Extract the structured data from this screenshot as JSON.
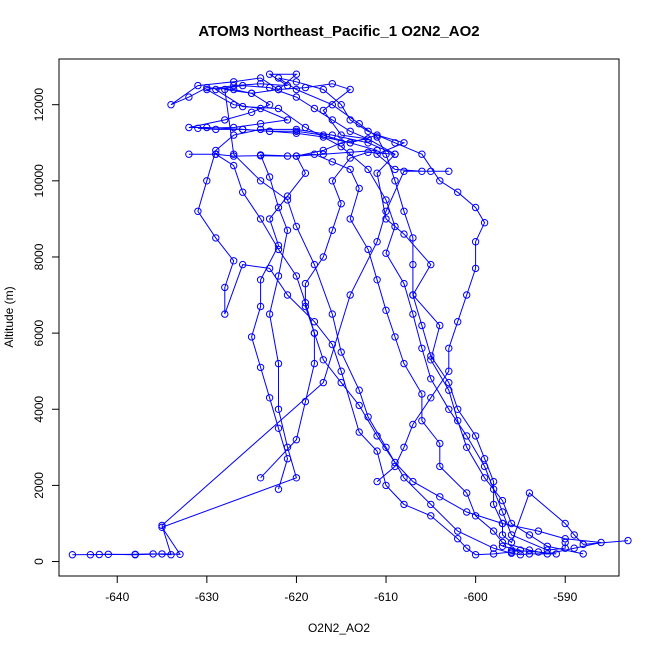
{
  "chart_data": {
    "type": "scatter",
    "title": "ATOM3 Northeast_Pacific_1 O2N2_AO2",
    "xlabel": "O2N2_AO2",
    "ylabel": "Altitude (m)",
    "xlim": [
      -646.5,
      -584.0
    ],
    "ylim": [
      -380,
      13200
    ],
    "xticks": [
      -640,
      -630,
      -620,
      -610,
      -600,
      -590
    ],
    "yticks": [
      0,
      2000,
      4000,
      6000,
      8000,
      10000,
      12000
    ],
    "grid": false,
    "legend": "none",
    "color": "#0000ff",
    "series": [
      {
        "points": [
          [
            -645,
            180
          ],
          [
            -642,
            185
          ],
          [
            -638,
            190
          ],
          [
            -636,
            200
          ],
          [
            -634,
            180
          ],
          [
            -635,
            950
          ],
          [
            -617,
            4700
          ],
          [
            -614,
            7000
          ],
          [
            -611,
            8400
          ],
          [
            -610,
            9200
          ],
          [
            -608,
            10250
          ],
          [
            -605,
            10250
          ],
          [
            -603,
            10250
          ],
          [
            -606,
            10250
          ],
          [
            -609,
            10300
          ],
          [
            -611,
            10700
          ],
          [
            -608,
            11000
          ],
          [
            -611,
            11200
          ],
          [
            -614,
            11000
          ],
          [
            -617,
            11200
          ],
          [
            -620,
            11300
          ],
          [
            -623,
            11300
          ],
          [
            -626,
            11350
          ],
          [
            -629,
            11350
          ],
          [
            -631,
            11380
          ],
          [
            -627,
            11400
          ],
          [
            -624,
            11500
          ],
          [
            -621,
            11600
          ],
          [
            -624,
            11900
          ],
          [
            -627,
            12000
          ],
          [
            -630,
            12400
          ],
          [
            -627,
            12500
          ],
          [
            -624,
            12550
          ],
          [
            -621,
            12500
          ],
          [
            -623,
            12800
          ],
          [
            -620,
            12800
          ],
          [
            -622,
            12400
          ],
          [
            -625,
            12300
          ],
          [
            -628,
            12400
          ],
          [
            -627,
            10700
          ],
          [
            -624,
            10000
          ],
          [
            -621,
            9500
          ],
          [
            -620,
            8800
          ],
          [
            -618,
            7800
          ],
          [
            -616,
            6500
          ],
          [
            -615,
            5500
          ],
          [
            -613,
            4500
          ],
          [
            -612,
            3800
          ],
          [
            -610,
            3000
          ],
          [
            -608,
            2200
          ],
          [
            -605,
            1500
          ],
          [
            -602,
            800
          ],
          [
            -598,
            350
          ],
          [
            -596,
            220
          ],
          [
            -595,
            180
          ],
          [
            -594,
            200
          ],
          [
            -591,
            200
          ],
          [
            -593,
            250
          ],
          [
            -596,
            300
          ]
        ]
      },
      {
        "points": [
          [
            -643,
            180
          ],
          [
            -641,
            190
          ],
          [
            -638,
            180
          ],
          [
            -635,
            200
          ],
          [
            -633,
            190
          ],
          [
            -635,
            900
          ],
          [
            -620,
            2200
          ],
          [
            -621,
            3000
          ],
          [
            -622,
            4000
          ],
          [
            -622,
            5200
          ],
          [
            -623,
            6500
          ],
          [
            -622,
            7500
          ],
          [
            -621,
            8700
          ],
          [
            -622,
            9300
          ],
          [
            -623,
            10100
          ],
          [
            -624,
            10680
          ],
          [
            -620,
            10650
          ],
          [
            -617,
            10700
          ],
          [
            -614,
            10750
          ],
          [
            -611,
            10800
          ],
          [
            -614,
            11000
          ],
          [
            -617,
            11150
          ],
          [
            -620,
            11250
          ],
          [
            -623,
            11300
          ],
          [
            -626,
            11350
          ],
          [
            -630,
            11400
          ],
          [
            -632,
            11400
          ],
          [
            -628,
            11600
          ],
          [
            -625,
            11800
          ],
          [
            -623,
            12000
          ],
          [
            -625,
            12300
          ],
          [
            -627,
            12400
          ],
          [
            -630,
            12450
          ],
          [
            -632,
            12200
          ],
          [
            -634,
            12000
          ],
          [
            -631,
            12500
          ],
          [
            -627,
            12600
          ],
          [
            -624,
            12700
          ],
          [
            -622,
            12400
          ],
          [
            -619,
            12450
          ],
          [
            -616,
            12550
          ],
          [
            -614,
            12400
          ],
          [
            -617,
            11850
          ],
          [
            -615,
            11200
          ],
          [
            -612,
            11100
          ],
          [
            -609,
            10700
          ],
          [
            -611,
            10200
          ],
          [
            -610,
            9000
          ],
          [
            -608,
            8600
          ],
          [
            -605,
            7800
          ],
          [
            -607,
            7000
          ],
          [
            -604,
            6200
          ],
          [
            -605,
            5300
          ],
          [
            -603,
            4500
          ],
          [
            -602,
            3700
          ],
          [
            -601,
            3000
          ],
          [
            -599,
            2200
          ],
          [
            -597,
            1600
          ],
          [
            -596,
            1000
          ],
          [
            -594,
            700
          ],
          [
            -592,
            400
          ],
          [
            -588,
            200
          ]
        ]
      },
      {
        "points": [
          [
            -632,
            10700
          ],
          [
            -629,
            10700
          ],
          [
            -627,
            10650
          ],
          [
            -624,
            10660
          ],
          [
            -621,
            10650
          ],
          [
            -618,
            10700
          ],
          [
            -616,
            10500
          ],
          [
            -614,
            10300
          ],
          [
            -613,
            9800
          ],
          [
            -614,
            9000
          ],
          [
            -612,
            8200
          ],
          [
            -611,
            7400
          ],
          [
            -610,
            6600
          ],
          [
            -609,
            5900
          ],
          [
            -608,
            5200
          ],
          [
            -606,
            4400
          ],
          [
            -606,
            3700
          ],
          [
            -604,
            3100
          ],
          [
            -604,
            2500
          ],
          [
            -601,
            1800
          ],
          [
            -600,
            1200
          ],
          [
            -598,
            800
          ],
          [
            -597,
            500
          ],
          [
            -594,
            300
          ],
          [
            -592,
            200
          ],
          [
            -589,
            350
          ],
          [
            -586,
            500
          ],
          [
            -590,
            600
          ],
          [
            -593,
            800
          ],
          [
            -597,
            1000
          ],
          [
            -601,
            1300
          ],
          [
            -604,
            1700
          ],
          [
            -607,
            2100
          ],
          [
            -609,
            2600
          ],
          [
            -611,
            3300
          ],
          [
            -613,
            4100
          ],
          [
            -615,
            4700
          ],
          [
            -617,
            5300
          ],
          [
            -618,
            6000
          ],
          [
            -619,
            6800
          ],
          [
            -620,
            7500
          ],
          [
            -622,
            8200
          ],
          [
            -624,
            9000
          ],
          [
            -626,
            9700
          ],
          [
            -627,
            10400
          ],
          [
            -629,
            10700
          ]
        ]
      },
      {
        "points": [
          [
            -622,
            1900
          ],
          [
            -621,
            2700
          ],
          [
            -622,
            3500
          ],
          [
            -623,
            4300
          ],
          [
            -624,
            5100
          ],
          [
            -625,
            5900
          ],
          [
            -624,
            6700
          ],
          [
            -624,
            7400
          ],
          [
            -622,
            8300
          ],
          [
            -623,
            9000
          ],
          [
            -621,
            9600
          ],
          [
            -619,
            10200
          ],
          [
            -620,
            10650
          ],
          [
            -617,
            10800
          ],
          [
            -615,
            11000
          ],
          [
            -612,
            11100
          ],
          [
            -614,
            11300
          ],
          [
            -616,
            11600
          ],
          [
            -618,
            11900
          ],
          [
            -620,
            12200
          ],
          [
            -623,
            12450
          ],
          [
            -626,
            12500
          ],
          [
            -629,
            12400
          ],
          [
            -626,
            11950
          ],
          [
            -622,
            11900
          ],
          [
            -619,
            11400
          ],
          [
            -615,
            10900
          ],
          [
            -612,
            10300
          ],
          [
            -610,
            9500
          ],
          [
            -609,
            8800
          ],
          [
            -610,
            8100
          ],
          [
            -608,
            7300
          ],
          [
            -607,
            6500
          ],
          [
            -606,
            5600
          ],
          [
            -605,
            4800
          ],
          [
            -603,
            4000
          ],
          [
            -601,
            3300
          ],
          [
            -599,
            2500
          ],
          [
            -598,
            1900
          ],
          [
            -597,
            1300
          ],
          [
            -596,
            700
          ],
          [
            -592,
            300
          ],
          [
            -590,
            350
          ],
          [
            -590,
            500
          ]
        ]
      },
      {
        "points": [
          [
            -624,
            2200
          ],
          [
            -620,
            3200
          ],
          [
            -619,
            4200
          ],
          [
            -618,
            5200
          ],
          [
            -618,
            6000
          ],
          [
            -619,
            6700
          ],
          [
            -619,
            7300
          ],
          [
            -617,
            8000
          ],
          [
            -616,
            8700
          ],
          [
            -615,
            9400
          ],
          [
            -616,
            10000
          ],
          [
            -614,
            10600
          ],
          [
            -612,
            10750
          ],
          [
            -609,
            10700
          ],
          [
            -612,
            11000
          ],
          [
            -616,
            11200
          ],
          [
            -620,
            11350
          ],
          [
            -624,
            11350
          ],
          [
            -627,
            11200
          ],
          [
            -629,
            10800
          ],
          [
            -630,
            10000
          ],
          [
            -631,
            9200
          ],
          [
            -629,
            8500
          ],
          [
            -627,
            7900
          ],
          [
            -628,
            7200
          ],
          [
            -628,
            6500
          ],
          [
            -626,
            7800
          ],
          [
            -623,
            7700
          ],
          [
            -621,
            7000
          ],
          [
            -618,
            6300
          ],
          [
            -616,
            5700
          ],
          [
            -615,
            5000
          ],
          [
            -613,
            3400
          ],
          [
            -611,
            2900
          ],
          [
            -610,
            2000
          ],
          [
            -608,
            1500
          ],
          [
            -605,
            1200
          ],
          [
            -602,
            600
          ],
          [
            -601,
            350
          ],
          [
            -600,
            180
          ],
          [
            -598,
            200
          ],
          [
            -596,
            250
          ],
          [
            -595,
            300
          ],
          [
            -597,
            400
          ]
        ]
      },
      {
        "points": [
          [
            -611,
            2100
          ],
          [
            -609,
            2500
          ],
          [
            -608,
            3000
          ],
          [
            -607,
            3600
          ],
          [
            -605,
            4300
          ],
          [
            -603,
            5000
          ],
          [
            -603,
            5600
          ],
          [
            -602,
            6300
          ],
          [
            -601,
            7000
          ],
          [
            -600,
            7700
          ],
          [
            -600,
            8400
          ],
          [
            -599,
            8900
          ],
          [
            -600,
            9300
          ],
          [
            -602,
            9700
          ],
          [
            -604,
            10000
          ],
          [
            -606,
            10700
          ],
          [
            -609,
            11000
          ],
          [
            -612,
            11300
          ],
          [
            -614,
            11600
          ],
          [
            -615,
            12000
          ],
          [
            -617,
            12400
          ],
          [
            -620,
            12600
          ],
          [
            -622,
            12700
          ],
          [
            -620,
            12400
          ],
          [
            -616,
            12000
          ],
          [
            -613,
            11500
          ],
          [
            -611,
            11150
          ],
          [
            -610,
            10700
          ],
          [
            -609,
            10000
          ],
          [
            -608,
            9200
          ],
          [
            -607,
            8500
          ],
          [
            -607,
            7800
          ],
          [
            -607,
            7000
          ],
          [
            -606,
            6200
          ],
          [
            -605,
            5400
          ],
          [
            -603,
            4700
          ],
          [
            -602,
            4000
          ],
          [
            -600,
            3300
          ],
          [
            -599,
            2700
          ],
          [
            -598,
            2100
          ],
          [
            -598,
            1500
          ],
          [
            -597,
            1000
          ],
          [
            -597,
            700
          ],
          [
            -596,
            500
          ],
          [
            -594,
            1800
          ],
          [
            -590,
            1000
          ],
          [
            -589,
            700
          ],
          [
            -588,
            450
          ],
          [
            -583,
            550
          ]
        ]
      }
    ]
  }
}
